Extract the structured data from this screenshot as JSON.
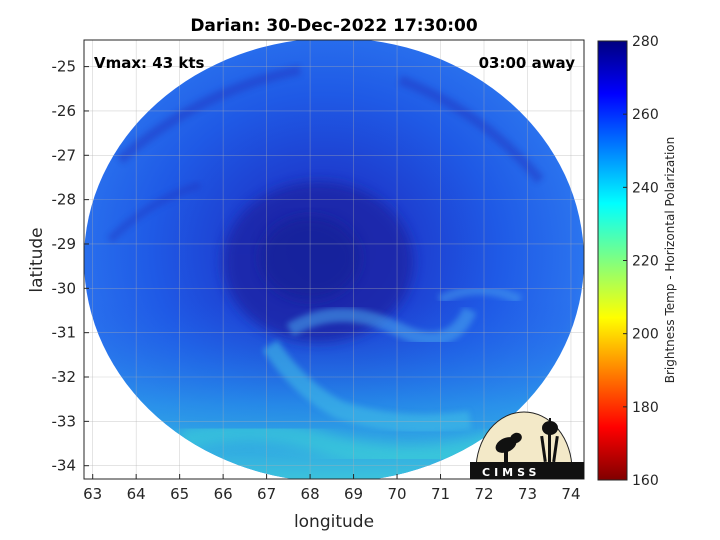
{
  "chart_data": {
    "type": "heatmap",
    "title": "Darian: 30-Dec-2022 17:30:00",
    "xlabel": "longitude",
    "ylabel": "latitude",
    "xlim": [
      62.8,
      74.3
    ],
    "ylim": [
      -34.3,
      -24.4
    ],
    "x_ticks": [
      63,
      64,
      65,
      66,
      67,
      68,
      69,
      70,
      71,
      72,
      73,
      74
    ],
    "y_ticks": [
      -25,
      -26,
      -27,
      -28,
      -29,
      -30,
      -31,
      -32,
      -33,
      -34
    ],
    "grid": true,
    "annotations": {
      "vmax": "Vmax: 43 kts",
      "time_away": "03:00 away"
    },
    "colorbar": {
      "label": "Brightness Temp - Horizontal Polarization",
      "range": [
        160,
        280
      ],
      "ticks": [
        280,
        260,
        240,
        220,
        200,
        180,
        160
      ],
      "colormap": "jet"
    },
    "field": {
      "center": [
        68.4,
        -29.3
      ],
      "values_note": ""
    }
  },
  "logo": {
    "text": "CIMSS"
  },
  "colors": {
    "background": "#ffffff",
    "core": "#1e2eb8",
    "mid": "#1f5ee6",
    "edge_warm": "#32c8e0"
  }
}
